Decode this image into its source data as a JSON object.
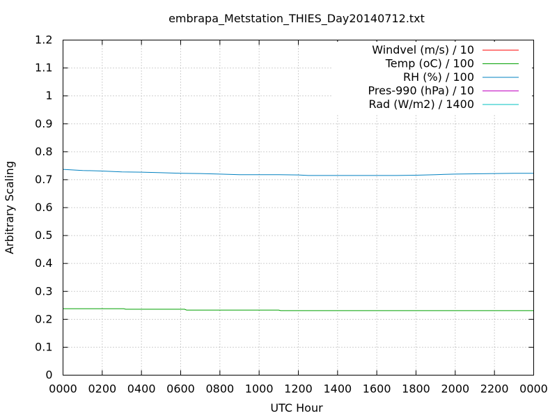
{
  "chart_data": {
    "type": "line",
    "title": "embrapa_Metstation_THIES_Day20140712.txt",
    "xlabel": "UTC Hour",
    "ylabel": "Arbitrary Scaling",
    "xlim": [
      0,
      24
    ],
    "ylim": [
      0,
      1.2
    ],
    "x_ticks": [
      "0000",
      "0200",
      "0400",
      "0600",
      "0800",
      "1000",
      "1200",
      "1400",
      "1600",
      "1800",
      "2000",
      "2200",
      "0000"
    ],
    "y_ticks": [
      "0",
      "0.1",
      "0.2",
      "0.3",
      "0.4",
      "0.5",
      "0.6",
      "0.7",
      "0.8",
      "0.9",
      "1",
      "1.1",
      "1.2"
    ],
    "grid": true,
    "legend_position": "top-right",
    "series": [
      {
        "name": "Windvel (m/s) / 10",
        "color": "#ff0000",
        "x": [],
        "y": []
      },
      {
        "name": "Temp (oC) / 100",
        "color": "#00a000",
        "x": [
          0,
          3.1,
          3.2,
          6.2,
          6.3,
          11,
          11.1,
          24
        ],
        "y": [
          0.238,
          0.238,
          0.236,
          0.236,
          0.233,
          0.233,
          0.231,
          0.231
        ]
      },
      {
        "name": "RH (%) / 100",
        "color": "#0080c0",
        "x": [
          0,
          1,
          2,
          3,
          4,
          5,
          6,
          7,
          8,
          9,
          10,
          11,
          12,
          12.5,
          13,
          14,
          15,
          16,
          17,
          18,
          19,
          20,
          21,
          22,
          23,
          24
        ],
        "y": [
          0.737,
          0.733,
          0.731,
          0.728,
          0.727,
          0.725,
          0.723,
          0.722,
          0.72,
          0.718,
          0.718,
          0.718,
          0.717,
          0.715,
          0.715,
          0.715,
          0.715,
          0.715,
          0.715,
          0.716,
          0.718,
          0.72,
          0.721,
          0.722,
          0.723,
          0.723
        ]
      },
      {
        "name": "Pres-990 (hPa) / 10",
        "color": "#c000c0",
        "x": [],
        "y": []
      },
      {
        "name": "Rad (W/m2) / 1400",
        "color": "#00c0c0",
        "x": [],
        "y": []
      }
    ]
  }
}
